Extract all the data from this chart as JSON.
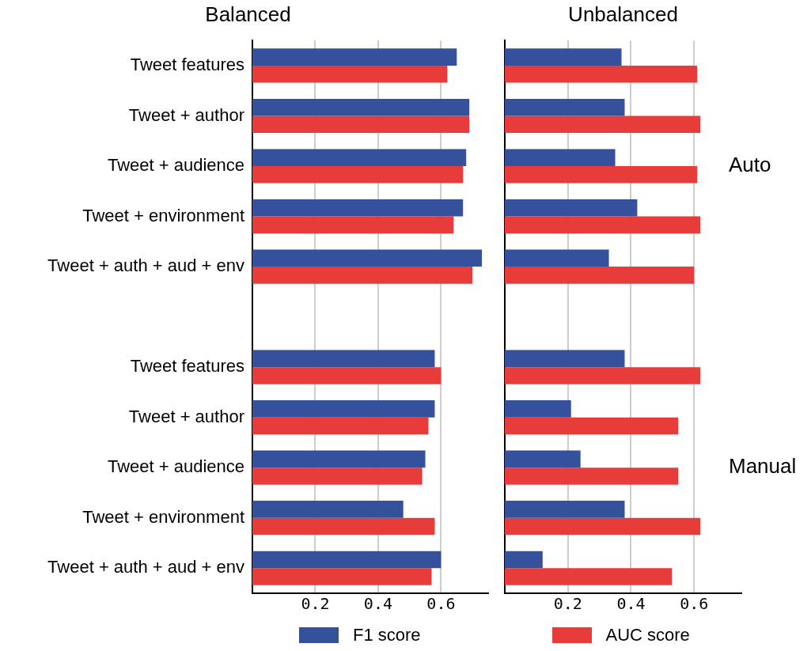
{
  "chart_data": [
    {
      "type": "bar",
      "orientation": "horizontal",
      "title": "Balanced",
      "categories": [
        "Tweet features",
        "Tweet + author",
        "Tweet + audience",
        "Tweet + environment",
        "Tweet + auth + aud + env",
        null,
        "Tweet features",
        "Tweet + author",
        "Tweet + audience",
        "Tweet + environment",
        "Tweet + auth + aud + env"
      ],
      "series": [
        {
          "name": "F1 score",
          "color": "#35519c",
          "values": [
            0.65,
            0.69,
            0.68,
            0.67,
            0.73,
            null,
            0.58,
            0.58,
            0.55,
            0.48,
            0.6
          ]
        },
        {
          "name": "AUC score",
          "color": "#e83c3b",
          "values": [
            0.62,
            0.69,
            0.67,
            0.64,
            0.7,
            null,
            0.6,
            0.56,
            0.54,
            0.58,
            0.57
          ]
        }
      ],
      "xlim": [
        0,
        0.75
      ],
      "xticks": [
        0.2,
        0.4,
        0.6
      ],
      "grid": "x",
      "legend": "bottom"
    },
    {
      "type": "bar",
      "orientation": "horizontal",
      "title": "Unbalanced",
      "categories": [
        null,
        null,
        null,
        null,
        null,
        null,
        null,
        null,
        null,
        null,
        null
      ],
      "series": [
        {
          "color": "#35519c",
          "values": [
            0.37,
            0.38,
            0.35,
            0.42,
            0.33,
            null,
            0.38,
            0.21,
            0.24,
            0.38,
            0.12
          ]
        },
        {
          "color": "#e83c3b",
          "values": [
            0.61,
            0.62,
            0.61,
            0.62,
            0.6,
            null,
            0.62,
            0.55,
            0.55,
            0.62,
            0.53
          ]
        }
      ],
      "xlim": [
        0,
        0.75
      ],
      "xticks": [
        0.2,
        0.4,
        0.6
      ],
      "grid": "x",
      "tick_labels": "x",
      "annotations": [
        "Auto",
        "Manual"
      ]
    }
  ]
}
